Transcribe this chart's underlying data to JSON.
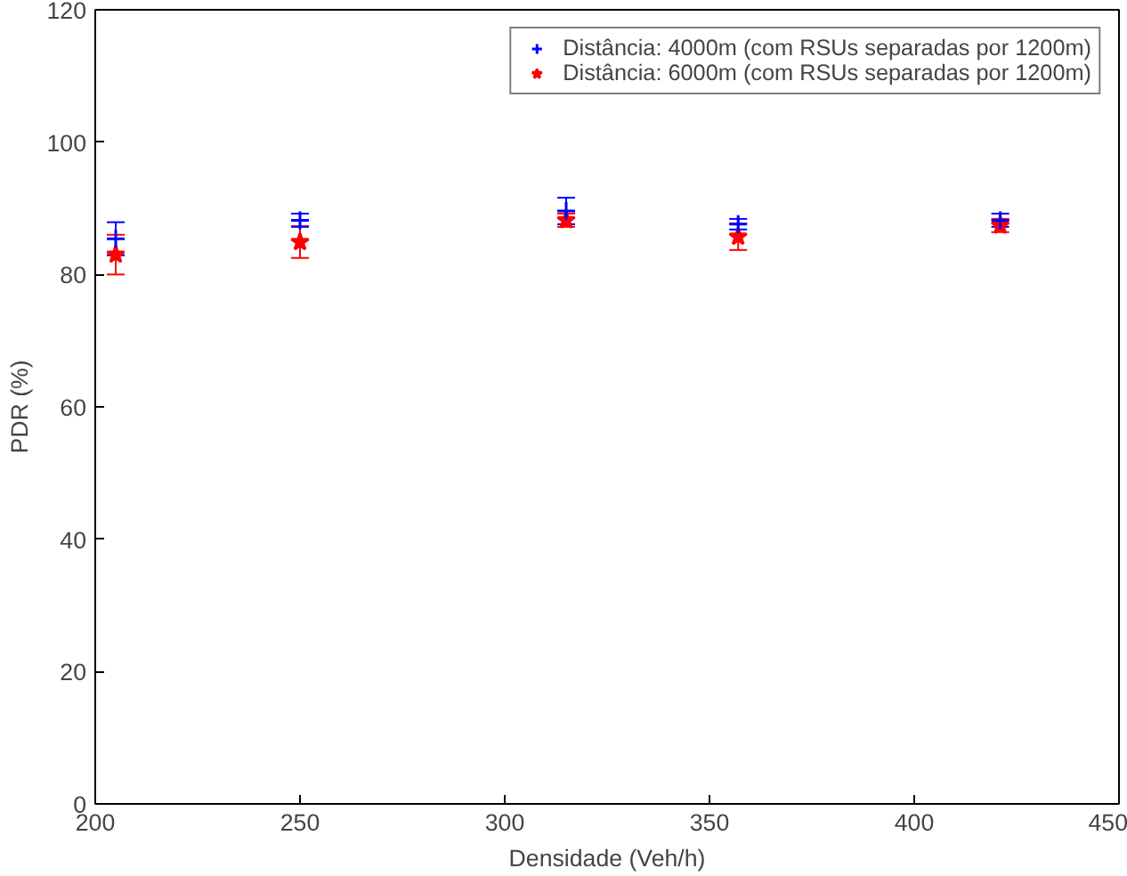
{
  "chart_data": {
    "type": "scatter",
    "xlabel": "Densidade (Veh/h)",
    "ylabel": "PDR (%)",
    "xlim": [
      200,
      450
    ],
    "ylim": [
      0,
      120
    ],
    "xticks": [
      200,
      250,
      300,
      350,
      400,
      450
    ],
    "yticks": [
      0,
      20,
      40,
      60,
      80,
      100,
      120
    ],
    "grid": false,
    "legend": "top right",
    "series": [
      {
        "name": "Distância: 4000m (com RSUs separadas por 1200m)",
        "color": "#0000ff",
        "marker": "cross",
        "x": [
          205,
          250,
          315,
          357,
          421
        ],
        "values": [
          85.4,
          88.2,
          89.6,
          87.6,
          88.2
        ],
        "errors": [
          2.5,
          1,
          2,
          0.8,
          1
        ]
      },
      {
        "name": "Distância: 6000m (com RSUs separadas por 1200m)",
        "color": "#ff0000",
        "marker": "star",
        "x": [
          205,
          250,
          315,
          357,
          421
        ],
        "values": [
          83,
          84.9,
          88.2,
          85.7,
          87.4
        ],
        "errors": [
          3,
          2.4,
          1,
          2,
          1
        ]
      }
    ]
  }
}
